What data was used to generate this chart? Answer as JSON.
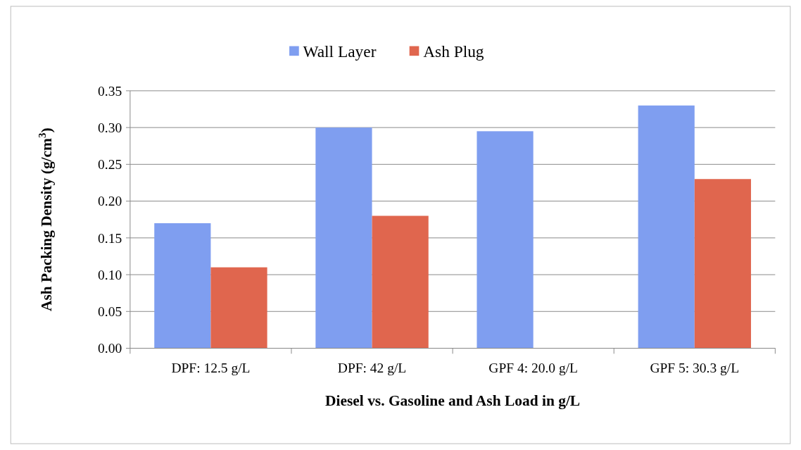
{
  "chart_data": {
    "type": "bar",
    "xlabel": "Diesel vs. Gasoline and Ash Load in g/L",
    "ylabel": "Ash Packing Density (g/cm$^{3}$)",
    "categories": [
      "DPF: 12.5 g/L",
      "DPF: 42 g/L",
      "GPF 4: 20.0 g/L",
      "GPF 5: 30.3 g/L"
    ],
    "series": [
      {
        "name": "Wall Layer",
        "color": "#7f9ef0",
        "values": [
          0.17,
          0.3,
          0.295,
          0.33
        ]
      },
      {
        "name": "Ash Plug",
        "color": "#e0664e",
        "values": [
          0.11,
          0.18,
          null,
          0.23
        ]
      }
    ],
    "ylim": [
      0,
      0.35
    ],
    "yticks": [
      {
        "value": 0,
        "label": "0.00"
      },
      {
        "value": 0.05,
        "label": "0.05"
      },
      {
        "value": 0.1,
        "label": "0.10"
      },
      {
        "value": 0.15,
        "label": "0.15"
      },
      {
        "value": 0.2,
        "label": "0.20"
      },
      {
        "value": 0.25,
        "label": "0.25"
      },
      {
        "value": 0.3,
        "label": "0.30"
      },
      {
        "value": 0.35,
        "label": "0.35"
      }
    ],
    "grid": "y",
    "legend": "top"
  }
}
